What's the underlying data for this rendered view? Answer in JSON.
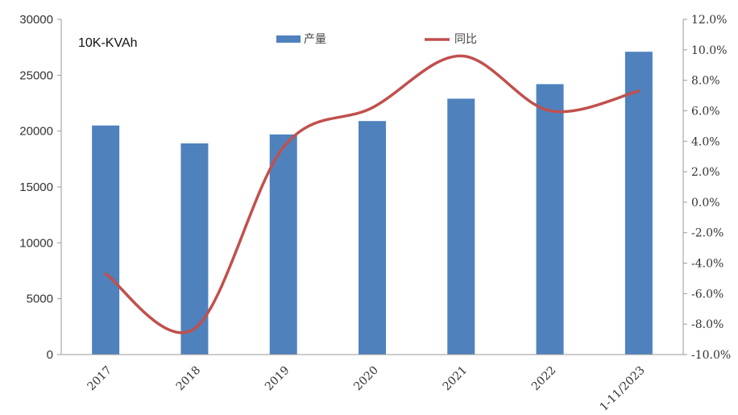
{
  "chart_data": {
    "type": "bar",
    "unit_label": "10K-KVAh",
    "categories": [
      "2017",
      "2018",
      "2019",
      "2020",
      "2021",
      "2022",
      "1-11/2023"
    ],
    "series": [
      {
        "name": "产量",
        "type": "bar",
        "axis": "left",
        "color": "#4f81bd",
        "values": [
          20500,
          18900,
          19700,
          20900,
          22900,
          24200,
          27100
        ]
      },
      {
        "name": "同比",
        "type": "line",
        "axis": "right",
        "color": "#c0504d",
        "values": [
          -4.7,
          -8.3,
          3.6,
          6.2,
          9.6,
          6.0,
          7.3
        ]
      }
    ],
    "y_left": {
      "min": 0,
      "max": 30000,
      "step": 5000,
      "ticks": [
        "0",
        "5000",
        "10000",
        "15000",
        "20000",
        "25000",
        "30000"
      ]
    },
    "y_right": {
      "min": -10,
      "max": 12,
      "step": 2,
      "ticks": [
        "-10.0%",
        "-8.0%",
        "-6.0%",
        "-4.0%",
        "-2.0%",
        "0.0%",
        "2.0%",
        "4.0%",
        "6.0%",
        "8.0%",
        "10.0%",
        "12.0%"
      ]
    },
    "grid": false,
    "legend_position": "top-center"
  }
}
